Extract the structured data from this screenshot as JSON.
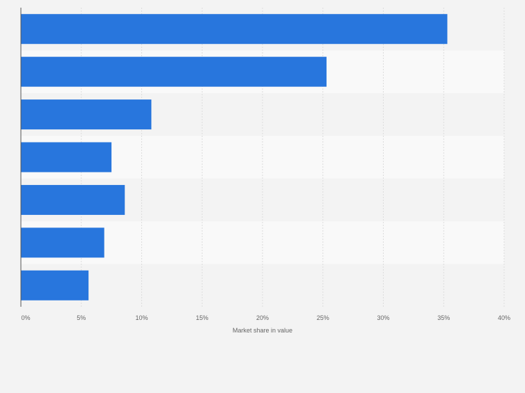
{
  "chart_data": {
    "type": "bar",
    "orientation": "horizontal",
    "categories": [
      "",
      "",
      "",
      "",
      "",
      "",
      ""
    ],
    "values": [
      35.3,
      25.3,
      10.8,
      7.5,
      8.6,
      6.9,
      5.6
    ],
    "xlabel": "Market share in value",
    "ylabel": "",
    "xlim": [
      0,
      40
    ],
    "x_ticks": [
      "0%",
      "5%",
      "10%",
      "15%",
      "20%",
      "25%",
      "30%",
      "35%",
      "40%"
    ],
    "grid": "vertical",
    "colors": {
      "bar": "#2876dd",
      "band_light": "#f9f9f9",
      "band_dark": "#f3f3f3",
      "grid": "#dcdcdc",
      "axis": "#555555",
      "tick_text": "#666666"
    }
  }
}
